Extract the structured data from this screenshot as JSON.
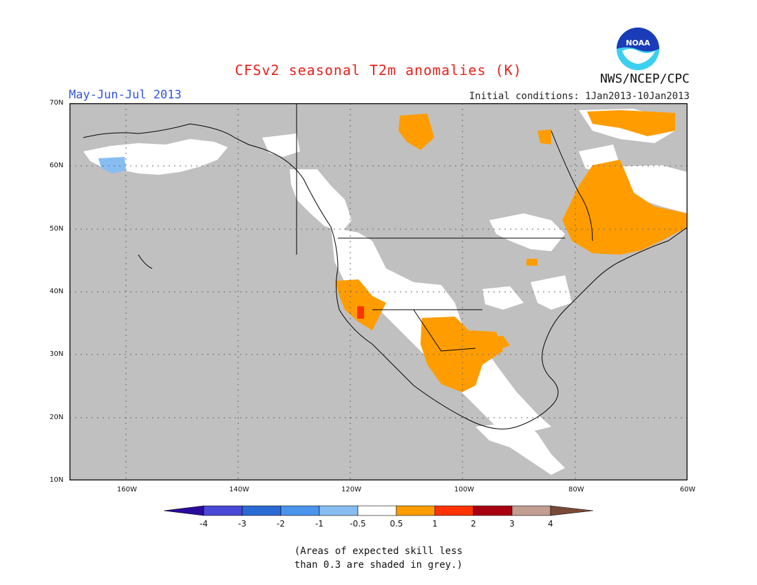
{
  "header": {
    "title": "CFSv2 seasonal T2m anomalies (K)",
    "season": "May-Jun-Jul 2013",
    "initial_conditions": "Initial conditions: 1Jan2013-10Jan2013",
    "agency": "NWS/NCEP/CPC",
    "logo_text": "NOAA"
  },
  "map": {
    "projection": "lat-lon",
    "lon_range": [
      -171,
      -60
    ],
    "lat_range": [
      10,
      70
    ],
    "lat_ticks": [
      "70N",
      "60N",
      "50N",
      "40N",
      "30N",
      "20N",
      "10N"
    ],
    "lon_ticks": [
      "160W",
      "140W",
      "120W",
      "100W",
      "80W",
      "60W"
    ],
    "grid": "dotted",
    "land_color": "#ffffff",
    "skill_mask_color": "#c0c0c0",
    "anomaly_regions": [
      {
        "name": "Northern Canada (Victoria Island area)",
        "category": "0.5 to 1"
      },
      {
        "name": "Baffin Island / Greenland coast",
        "category": "0.5 to 1"
      },
      {
        "name": "Quebec and Labrador",
        "category": "0.5 to 1"
      },
      {
        "name": "Great Basin / Southwest US",
        "category": "0.5 to 1"
      },
      {
        "name": "Southern Nevada",
        "category": "1 to 2"
      },
      {
        "name": "Texas / New Mexico / northern Mexico",
        "category": "0.5 to 1"
      },
      {
        "name": "Western Alaska",
        "category": "-1 to -0.5"
      }
    ]
  },
  "colorbar": {
    "labels": [
      "-4",
      "-3",
      "-2",
      "-1",
      "-0.5",
      "0.5",
      "1",
      "2",
      "3",
      "4"
    ],
    "colors": [
      "#2a0b9c",
      "#4a48d6",
      "#2a6ad4",
      "#4a94ec",
      "#88bdf2",
      "#ffffff",
      "#ff9d00",
      "#ff3300",
      "#a80010",
      "#c29d92",
      "#7a4a38"
    ]
  },
  "footnote": {
    "line1": "(Areas of expected skill less",
    "line2": "than 0.3 are shaded in grey.)"
  }
}
